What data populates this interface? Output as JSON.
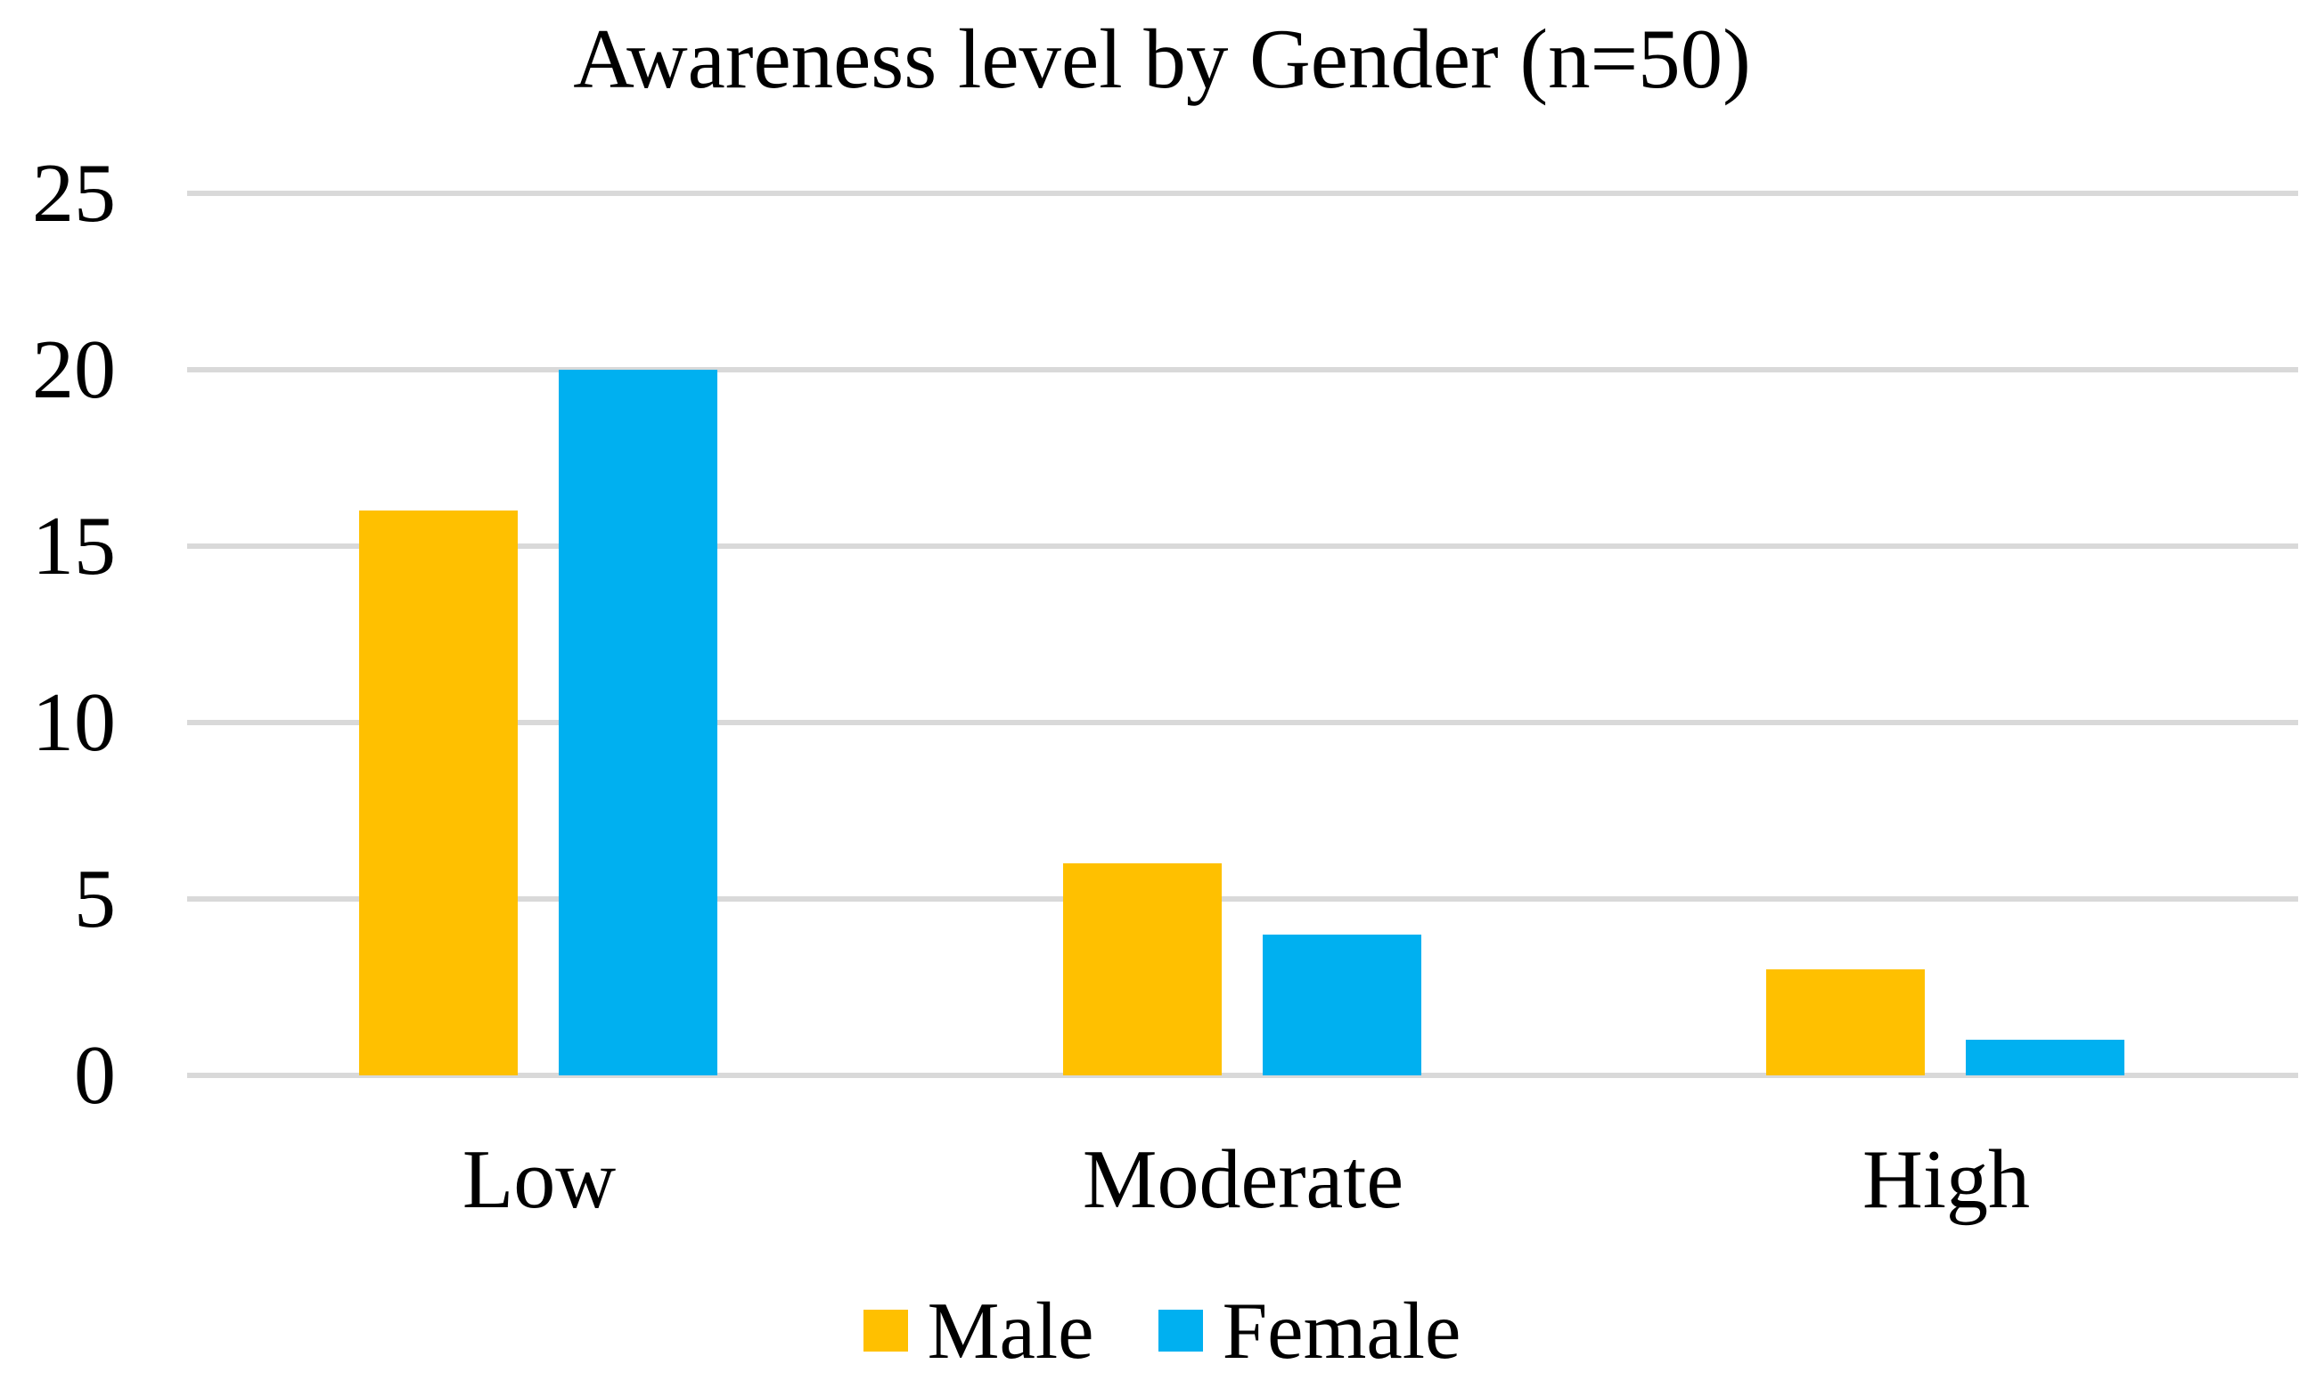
{
  "chart_data": {
    "type": "bar",
    "title": "Awareness level by Gender (n=50)",
    "categories": [
      "Low",
      "Moderate",
      "High"
    ],
    "series": [
      {
        "name": "Male",
        "color": "#FFC000",
        "values": [
          16,
          6,
          3
        ]
      },
      {
        "name": "Female",
        "color": "#00B0F0",
        "values": [
          20,
          4,
          1
        ]
      }
    ],
    "y_axis": {
      "min": 0,
      "max": 25,
      "tick_interval": 5,
      "tick_labels": [
        "0",
        "5",
        "10",
        "15",
        "20",
        "25"
      ]
    },
    "xlabel": "",
    "ylabel": "",
    "grid": "horizontal",
    "gridline_color": "#D9D9D9",
    "legend_position": "bottom",
    "background_color": "#FFFFFF",
    "text_color": "#000000"
  }
}
